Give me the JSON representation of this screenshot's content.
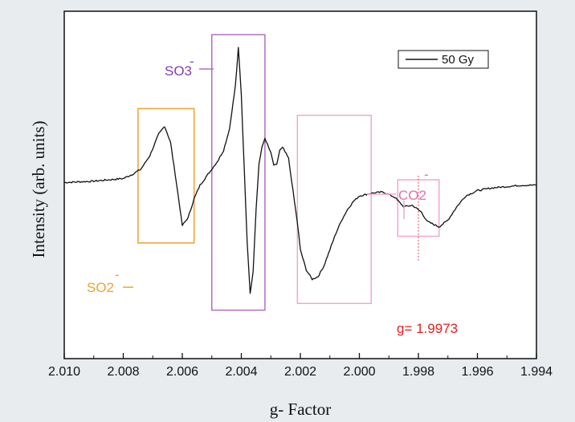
{
  "colors": {
    "background": "#e9ecef",
    "plot_background": "#ffffff",
    "trace": "#111111",
    "so2_box": "#f0a030",
    "so3_box": "#b070c0",
    "co2_box": "#f0a8d0",
    "g_marker": "#e02020"
  },
  "chart_data": {
    "type": "line",
    "xlabel": "g- Factor",
    "ylabel": "Intensity (arb. units)",
    "xlim": [
      2.01,
      1.994
    ],
    "x_reversed": true,
    "ticks": [
      "2.010",
      "2.008",
      "2.006",
      "2.004",
      "2.002",
      "2.000",
      "1.998",
      "1.996",
      "1.994"
    ],
    "tick_values": [
      2.01,
      2.008,
      2.006,
      2.004,
      2.002,
      2.0,
      1.998,
      1.996,
      1.994
    ],
    "ylim": [
      -1.0,
      1.0
    ],
    "y_ticks_shown": false,
    "grid": false,
    "legend": {
      "position": "top-right",
      "entries": [
        "50 Gy"
      ]
    },
    "series": [
      {
        "name": "50 Gy",
        "x": [
          2.01,
          2.009,
          2.0085,
          2.008,
          2.0077,
          2.0074,
          2.0071,
          2.0068,
          2.0066,
          2.0064,
          2.0062,
          2.006,
          2.0058,
          2.0056,
          2.0054,
          2.0052,
          2.005,
          2.0048,
          2.0046,
          2.0044,
          2.0042,
          2.0041,
          2.004,
          2.0039,
          2.0038,
          2.0037,
          2.0036,
          2.0035,
          2.0034,
          2.0033,
          2.0032,
          2.003,
          2.0029,
          2.0028,
          2.0027,
          2.0026,
          2.0024,
          2.0023,
          2.0022,
          2.0021,
          2.002,
          2.0018,
          2.0016,
          2.0014,
          2.0012,
          2.001,
          2.0008,
          2.0006,
          2.0004,
          2.0002,
          2.0,
          1.9996,
          1.9992,
          1.9988,
          1.9985,
          1.9982,
          1.9979,
          1.9977,
          1.9975,
          1.9973,
          1.997,
          1.9967,
          1.9964,
          1.996,
          1.9955,
          1.995,
          1.9945,
          1.994
        ],
        "y": [
          0.0,
          0.01,
          0.02,
          0.03,
          0.06,
          0.1,
          0.2,
          0.36,
          0.42,
          0.3,
          0.0,
          -0.32,
          -0.26,
          -0.12,
          -0.02,
          0.04,
          0.1,
          0.16,
          0.24,
          0.4,
          0.72,
          1.0,
          0.65,
          0.1,
          -0.45,
          -0.82,
          -0.66,
          -0.2,
          0.14,
          0.26,
          0.33,
          0.22,
          0.13,
          0.13,
          0.24,
          0.26,
          0.18,
          0.02,
          -0.14,
          -0.3,
          -0.5,
          -0.65,
          -0.72,
          -0.7,
          -0.62,
          -0.5,
          -0.38,
          -0.28,
          -0.2,
          -0.14,
          -0.1,
          -0.08,
          -0.07,
          -0.11,
          -0.18,
          -0.17,
          -0.22,
          -0.29,
          -0.31,
          -0.33,
          -0.28,
          -0.18,
          -0.1,
          -0.06,
          -0.04,
          -0.03,
          -0.02,
          -0.02
        ]
      }
    ],
    "annotations": [
      {
        "label": "SO2",
        "superscript": "-",
        "x_range": [
          2.0075,
          2.0056
        ],
        "y_range": [
          0.55,
          -0.45
        ]
      },
      {
        "label": "SO3",
        "superscript": "-",
        "x_range": [
          2.005,
          2.0032
        ],
        "y_range": [
          1.1,
          -0.95
        ]
      },
      {
        "label": "CO2",
        "superscript": "-",
        "x_range": [
          2.0021,
          1.9996
        ],
        "y_range": [
          0.5,
          -0.9
        ]
      },
      {
        "label": "",
        "superscript": "",
        "x_range": [
          1.9987,
          1.9973
        ],
        "y_range": [
          0.02,
          -0.4
        ]
      }
    ],
    "g_marker": {
      "label": "g= 1.9973",
      "x": 1.998
    }
  }
}
